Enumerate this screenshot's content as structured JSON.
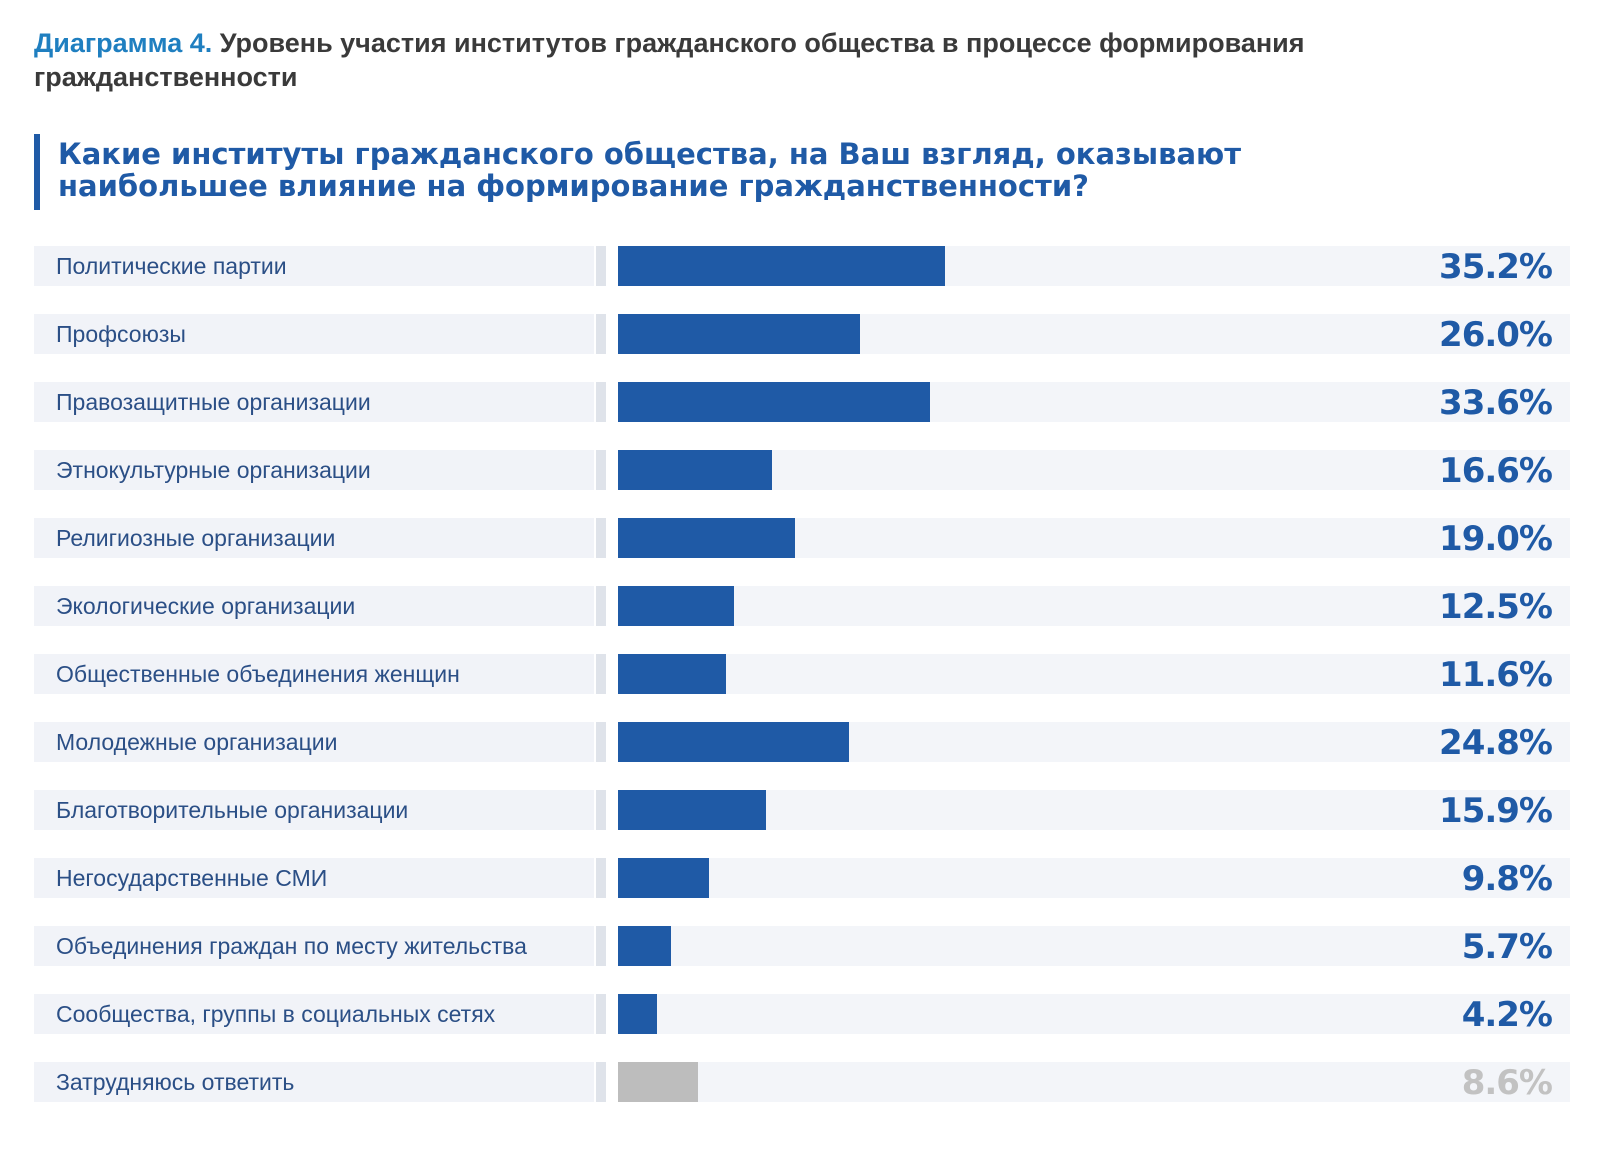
{
  "header": {
    "diagram_prefix": "Диаграмма 4.",
    "diagram_title": "Уровень участия институтов гражданского общества в процессе формирования гражданственности",
    "question": "Какие институты гражданского общества, на Ваш взгляд, оказывают наибольшее влияние на формирование гражданственности?"
  },
  "colors": {
    "primary": "#1f5aa6",
    "accent": "#1f7fc0",
    "neutral_bar": "#bdbdbd",
    "neutral_text": "#c2c2c2"
  },
  "chart_data": {
    "type": "bar",
    "orientation": "horizontal",
    "xlim": [
      0,
      100
    ],
    "grid": false,
    "legend": "none",
    "categories": [
      "Политические партии",
      "Профсоюзы",
      "Правозащитные организации",
      "Этнокультурные организации",
      "Религиозные организации",
      "Экологические организации",
      "Общественные объединения женщин",
      "Молодежные организации",
      "Благотворительные организации",
      "Негосударственные СМИ",
      "Объединения граждан по месту жительства",
      "Сообщества, группы в социальных сетях",
      "Затрудняюсь ответить"
    ],
    "values": [
      35.2,
      26.0,
      33.6,
      16.6,
      19.0,
      12.5,
      11.6,
      24.8,
      15.9,
      9.8,
      5.7,
      4.2,
      8.6
    ],
    "value_labels": [
      "35.2%",
      "26.0%",
      "33.6%",
      "16.6%",
      "19.0%",
      "12.5%",
      "11.6%",
      "24.8%",
      "15.9%",
      "9.8%",
      "5.7%",
      "4.2%",
      "8.6%"
    ],
    "bar_colors": [
      "#1f5aa6",
      "#1f5aa6",
      "#1f5aa6",
      "#1f5aa6",
      "#1f5aa6",
      "#1f5aa6",
      "#1f5aa6",
      "#1f5aa6",
      "#1f5aa6",
      "#1f5aa6",
      "#1f5aa6",
      "#1f5aa6",
      "#bdbdbd"
    ],
    "value_colors": [
      "#1f5aa6",
      "#1f5aa6",
      "#1f5aa6",
      "#1f5aa6",
      "#1f5aa6",
      "#1f5aa6",
      "#1f5aa6",
      "#1f5aa6",
      "#1f5aa6",
      "#1f5aa6",
      "#1f5aa6",
      "#1f5aa6",
      "#c2c2c2"
    ]
  }
}
